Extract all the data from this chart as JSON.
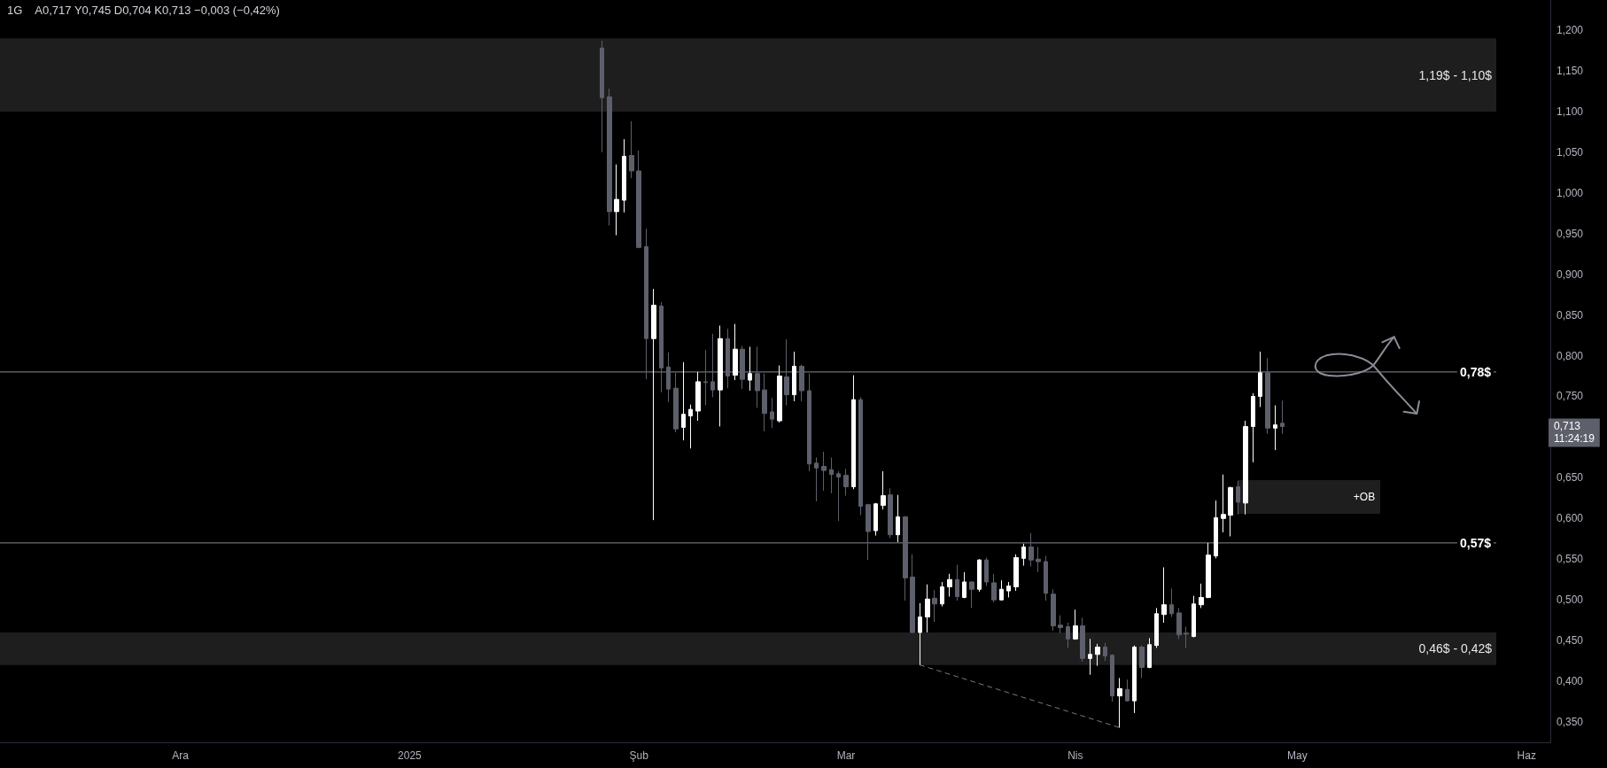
{
  "chart_data": {
    "type": "candlestick",
    "annotations": [
      "1G",
      "A0,717 Y0,745 D0,704 K0,713 −0,003 (−0,42%)",
      "0,713\n11:24:19",
      "+OB"
    ],
    "x": [
      "2025-01-27",
      "2025-01-28",
      "2025-01-29",
      "2025-01-30",
      "2025-01-31",
      "2025-02-01",
      "2025-02-02",
      "2025-02-03",
      "2025-02-04",
      "2025-02-05",
      "2025-02-06",
      "2025-02-07",
      "2025-02-08",
      "2025-02-09",
      "2025-02-10",
      "2025-02-11",
      "2025-02-12",
      "2025-02-13",
      "2025-02-14",
      "2025-02-15",
      "2025-02-16",
      "2025-02-17",
      "2025-02-18",
      "2025-02-19",
      "2025-02-20",
      "2025-02-21",
      "2025-02-22",
      "2025-02-23",
      "2025-02-24",
      "2025-02-25",
      "2025-02-26",
      "2025-02-27",
      "2025-02-28",
      "2025-03-01",
      "2025-03-02",
      "2025-03-03",
      "2025-03-04",
      "2025-03-05",
      "2025-03-06",
      "2025-03-07",
      "2025-03-08",
      "2025-03-09",
      "2025-03-10",
      "2025-03-11",
      "2025-03-12",
      "2025-03-13",
      "2025-03-14",
      "2025-03-15",
      "2025-03-16",
      "2025-03-17",
      "2025-03-18",
      "2025-03-19",
      "2025-03-20",
      "2025-03-21",
      "2025-03-22",
      "2025-03-23",
      "2025-03-24",
      "2025-03-25",
      "2025-03-26",
      "2025-03-27",
      "2025-03-28",
      "2025-03-29",
      "2025-03-30",
      "2025-03-31",
      "2025-04-01",
      "2025-04-02",
      "2025-04-03",
      "2025-04-04",
      "2025-04-05",
      "2025-04-06",
      "2025-04-07",
      "2025-04-08",
      "2025-04-09",
      "2025-04-10",
      "2025-04-11",
      "2025-04-12",
      "2025-04-13",
      "2025-04-14",
      "2025-04-15",
      "2025-04-16",
      "2025-04-17",
      "2025-04-18",
      "2025-04-19",
      "2025-04-20",
      "2025-04-21",
      "2025-04-22",
      "2025-04-23",
      "2025-04-24",
      "2025-04-25",
      "2025-04-26",
      "2025-04-27",
      "2025-04-28",
      "2025-04-29"
    ],
    "ohlc": [
      [
        1.178,
        1.187,
        1.05,
        1.117
      ],
      [
        1.118,
        1.128,
        0.96,
        0.977
      ],
      [
        0.977,
        1.035,
        0.948,
        0.992
      ],
      [
        0.991,
        1.066,
        0.976,
        1.045
      ],
      [
        1.046,
        1.088,
        1.018,
        1.027
      ],
      [
        1.027,
        1.052,
        0.932,
        0.933
      ],
      [
        0.934,
        0.956,
        0.771,
        0.821
      ],
      [
        0.821,
        0.882,
        0.598,
        0.862
      ],
      [
        0.861,
        0.866,
        0.755,
        0.785
      ],
      [
        0.786,
        0.804,
        0.743,
        0.759
      ],
      [
        0.76,
        0.779,
        0.706,
        0.71
      ],
      [
        0.712,
        0.792,
        0.696,
        0.728
      ],
      [
        0.726,
        0.74,
        0.686,
        0.734
      ],
      [
        0.732,
        0.78,
        0.72,
        0.768
      ],
      [
        0.768,
        0.807,
        0.739,
        0.767
      ],
      [
        0.768,
        0.827,
        0.749,
        0.758
      ],
      [
        0.758,
        0.837,
        0.713,
        0.821
      ],
      [
        0.821,
        0.833,
        0.76,
        0.775
      ],
      [
        0.776,
        0.839,
        0.77,
        0.808
      ],
      [
        0.808,
        0.812,
        0.759,
        0.771
      ],
      [
        0.77,
        0.811,
        0.757,
        0.778
      ],
      [
        0.778,
        0.811,
        0.736,
        0.757
      ],
      [
        0.758,
        0.778,
        0.707,
        0.729
      ],
      [
        0.731,
        0.748,
        0.711,
        0.722
      ],
      [
        0.72,
        0.788,
        0.718,
        0.775
      ],
      [
        0.774,
        0.82,
        0.739,
        0.752
      ],
      [
        0.752,
        0.805,
        0.744,
        0.787
      ],
      [
        0.787,
        0.789,
        0.744,
        0.757
      ],
      [
        0.757,
        0.778,
        0.658,
        0.667
      ],
      [
        0.668,
        0.675,
        0.621,
        0.662
      ],
      [
        0.664,
        0.682,
        0.634,
        0.659
      ],
      [
        0.66,
        0.675,
        0.631,
        0.654
      ],
      [
        0.655,
        0.658,
        0.597,
        0.651
      ],
      [
        0.653,
        0.661,
        0.628,
        0.639
      ],
      [
        0.639,
        0.776,
        0.636,
        0.746
      ],
      [
        0.746,
        0.749,
        0.604,
        0.615
      ],
      [
        0.617,
        0.618,
        0.549,
        0.584
      ],
      [
        0.585,
        0.619,
        0.579,
        0.618
      ],
      [
        0.616,
        0.658,
        0.611,
        0.628
      ],
      [
        0.629,
        0.637,
        0.576,
        0.58
      ],
      [
        0.58,
        0.629,
        0.571,
        0.602
      ],
      [
        0.602,
        0.603,
        0.499,
        0.527
      ],
      [
        0.528,
        0.556,
        0.459,
        0.46
      ],
      [
        0.46,
        0.496,
        0.42,
        0.479
      ],
      [
        0.479,
        0.519,
        0.46,
        0.501
      ],
      [
        0.502,
        0.512,
        0.473,
        0.495
      ],
      [
        0.495,
        0.522,
        0.492,
        0.516
      ],
      [
        0.516,
        0.532,
        0.504,
        0.525
      ],
      [
        0.525,
        0.543,
        0.499,
        0.504
      ],
      [
        0.503,
        0.534,
        0.502,
        0.522
      ],
      [
        0.522,
        0.523,
        0.49,
        0.513
      ],
      [
        0.513,
        0.55,
        0.51,
        0.549
      ],
      [
        0.549,
        0.552,
        0.517,
        0.522
      ],
      [
        0.521,
        0.532,
        0.497,
        0.5
      ],
      [
        0.5,
        0.524,
        0.499,
        0.513
      ],
      [
        0.511,
        0.522,
        0.503,
        0.517
      ],
      [
        0.516,
        0.556,
        0.511,
        0.552
      ],
      [
        0.551,
        0.569,
        0.542,
        0.565
      ],
      [
        0.565,
        0.582,
        0.541,
        0.549
      ],
      [
        0.55,
        0.565,
        0.534,
        0.547
      ],
      [
        0.547,
        0.554,
        0.499,
        0.508
      ],
      [
        0.507,
        0.513,
        0.462,
        0.468
      ],
      [
        0.469,
        0.481,
        0.459,
        0.466
      ],
      [
        0.467,
        0.472,
        0.441,
        0.452
      ],
      [
        0.452,
        0.488,
        0.451,
        0.468
      ],
      [
        0.468,
        0.478,
        0.424,
        0.428
      ],
      [
        0.428,
        0.452,
        0.408,
        0.433
      ],
      [
        0.433,
        0.446,
        0.419,
        0.442
      ],
      [
        0.442,
        0.447,
        0.425,
        0.431
      ],
      [
        0.432,
        0.433,
        0.375,
        0.382
      ],
      [
        0.382,
        0.404,
        0.343,
        0.391
      ],
      [
        0.39,
        0.402,
        0.375,
        0.376
      ],
      [
        0.376,
        0.444,
        0.361,
        0.442
      ],
      [
        0.442,
        0.444,
        0.404,
        0.417
      ],
      [
        0.417,
        0.453,
        0.416,
        0.445
      ],
      [
        0.444,
        0.49,
        0.441,
        0.483
      ],
      [
        0.482,
        0.54,
        0.472,
        0.494
      ],
      [
        0.494,
        0.514,
        0.479,
        0.483
      ],
      [
        0.484,
        0.49,
        0.452,
        0.457
      ],
      [
        0.459,
        0.467,
        0.441,
        0.458
      ],
      [
        0.455,
        0.505,
        0.454,
        0.495
      ],
      [
        0.494,
        0.52,
        0.49,
        0.503
      ],
      [
        0.503,
        0.57,
        0.502,
        0.555
      ],
      [
        0.554,
        0.622,
        0.551,
        0.601
      ],
      [
        0.6,
        0.654,
        0.583,
        0.605
      ],
      [
        0.604,
        0.639,
        0.578,
        0.638
      ],
      [
        0.639,
        0.646,
        0.605,
        0.62
      ],
      [
        0.619,
        0.72,
        0.605,
        0.713
      ],
      [
        0.713,
        0.754,
        0.669,
        0.75
      ],
      [
        0.75,
        0.805,
        0.737,
        0.779
      ],
      [
        0.779,
        0.797,
        0.704,
        0.711
      ],
      [
        0.711,
        0.739,
        0.684,
        0.715
      ],
      [
        0.717,
        0.745,
        0.704,
        0.713
      ]
    ],
    "colors": [
      "#5d606b",
      "#5d606b",
      "#ffffff",
      "#ffffff",
      "#5d606b",
      "#5d606b",
      "#5d606b",
      "#ffffff",
      "#5d606b",
      "#5d606b",
      "#5d606b",
      "#ffffff",
      "#ffffff",
      "#ffffff",
      "#5d606b",
      "#5d606b",
      "#ffffff",
      "#5d606b",
      "#ffffff",
      "#5d606b",
      "#ffffff",
      "#5d606b",
      "#5d606b",
      "#5d606b",
      "#ffffff",
      "#5d606b",
      "#ffffff",
      "#5d606b",
      "#5d606b",
      "#5d606b",
      "#5d606b",
      "#5d606b",
      "#5d606b",
      "#5d606b",
      "#ffffff",
      "#5d606b",
      "#5d606b",
      "#ffffff",
      "#ffffff",
      "#5d606b",
      "#ffffff",
      "#5d606b",
      "#5d606b",
      "#ffffff",
      "#ffffff",
      "#5d606b",
      "#ffffff",
      "#ffffff",
      "#5d606b",
      "#ffffff",
      "#5d606b",
      "#ffffff",
      "#5d606b",
      "#5d606b",
      "#ffffff",
      "#ffffff",
      "#ffffff",
      "#ffffff",
      "#5d606b",
      "#5d606b",
      "#5d606b",
      "#5d606b",
      "#5d606b",
      "#5d606b",
      "#ffffff",
      "#5d606b",
      "#ffffff",
      "#ffffff",
      "#5d606b",
      "#5d606b",
      "#ffffff",
      "#5d606b",
      "#ffffff",
      "#5d606b",
      "#ffffff",
      "#ffffff",
      "#ffffff",
      "#5d606b",
      "#5d606b",
      "#5d606b",
      "#ffffff",
      "#ffffff",
      "#ffffff",
      "#ffffff",
      "#ffffff",
      "#ffffff",
      "#5d606b",
      "#ffffff",
      "#ffffff",
      "#ffffff",
      "#5d606b",
      "#ffffff",
      "#5d606b"
    ],
    "series": [
      {
        "type": "line",
        "x": [
          "2025-03-11",
          "2025-04-07"
        ],
        "values": [
          0.42,
          0.343
        ],
        "color": "#787b86",
        "line_style": "dashed",
        "marker": "none"
      }
    ],
    "xlim": [
      "2024-11-06T15:00",
      "2025-06-04T05:00"
    ],
    "xticks": [
      {
        "value": "2024-12-01",
        "label": "Ara"
      },
      {
        "value": "2025-01-01",
        "label": "2025"
      },
      {
        "value": "2025-02-01",
        "label": "Şub"
      },
      {
        "value": "2025-03-01",
        "label": "Mar"
      },
      {
        "value": "2025-04-01",
        "label": "Nis"
      },
      {
        "value": "2025-05-01",
        "label": "May"
      },
      {
        "value": "2025-06-01",
        "label": "Haz"
      }
    ],
    "ylim": [
      0.325,
      1.237
    ],
    "yticks": [
      {
        "value": 0.35,
        "label": "0,350"
      },
      {
        "value": 0.4,
        "label": "0,400"
      },
      {
        "value": 0.45,
        "label": "0,450"
      },
      {
        "value": 0.5,
        "label": "0,500"
      },
      {
        "value": 0.55,
        "label": "0,550"
      },
      {
        "value": 0.6,
        "label": "0,600"
      },
      {
        "value": 0.65,
        "label": "0,650"
      },
      {
        "value": 0.75,
        "label": "0,750"
      },
      {
        "value": 0.8,
        "label": "0,800"
      },
      {
        "value": 0.85,
        "label": "0,850"
      },
      {
        "value": 0.9,
        "label": "0,900"
      },
      {
        "value": 0.95,
        "label": "0,950"
      },
      {
        "value": 1.0,
        "label": "1,000"
      },
      {
        "value": 1.05,
        "label": "1,050"
      },
      {
        "value": 1.1,
        "label": "1,100"
      },
      {
        "value": 1.15,
        "label": "1,150"
      },
      {
        "value": 1.2,
        "label": "1,200"
      }
    ],
    "ref_lines": [
      {
        "axis": "y",
        "value": 0.78,
        "label": "0,78$",
        "color": "#868993"
      },
      {
        "axis": "y",
        "value": 0.57,
        "label": "0,57$",
        "color": "#868993"
      }
    ],
    "bands": [
      {
        "axis": "y",
        "from": 1.1,
        "to": 1.19,
        "label": "1,19$ - 1,10$",
        "color": "#1e1e1e"
      },
      {
        "axis": "y",
        "from": 0.42,
        "to": 0.46,
        "label": "0,46$ - 0,42$",
        "color": "#1e1e1e"
      }
    ]
  }
}
